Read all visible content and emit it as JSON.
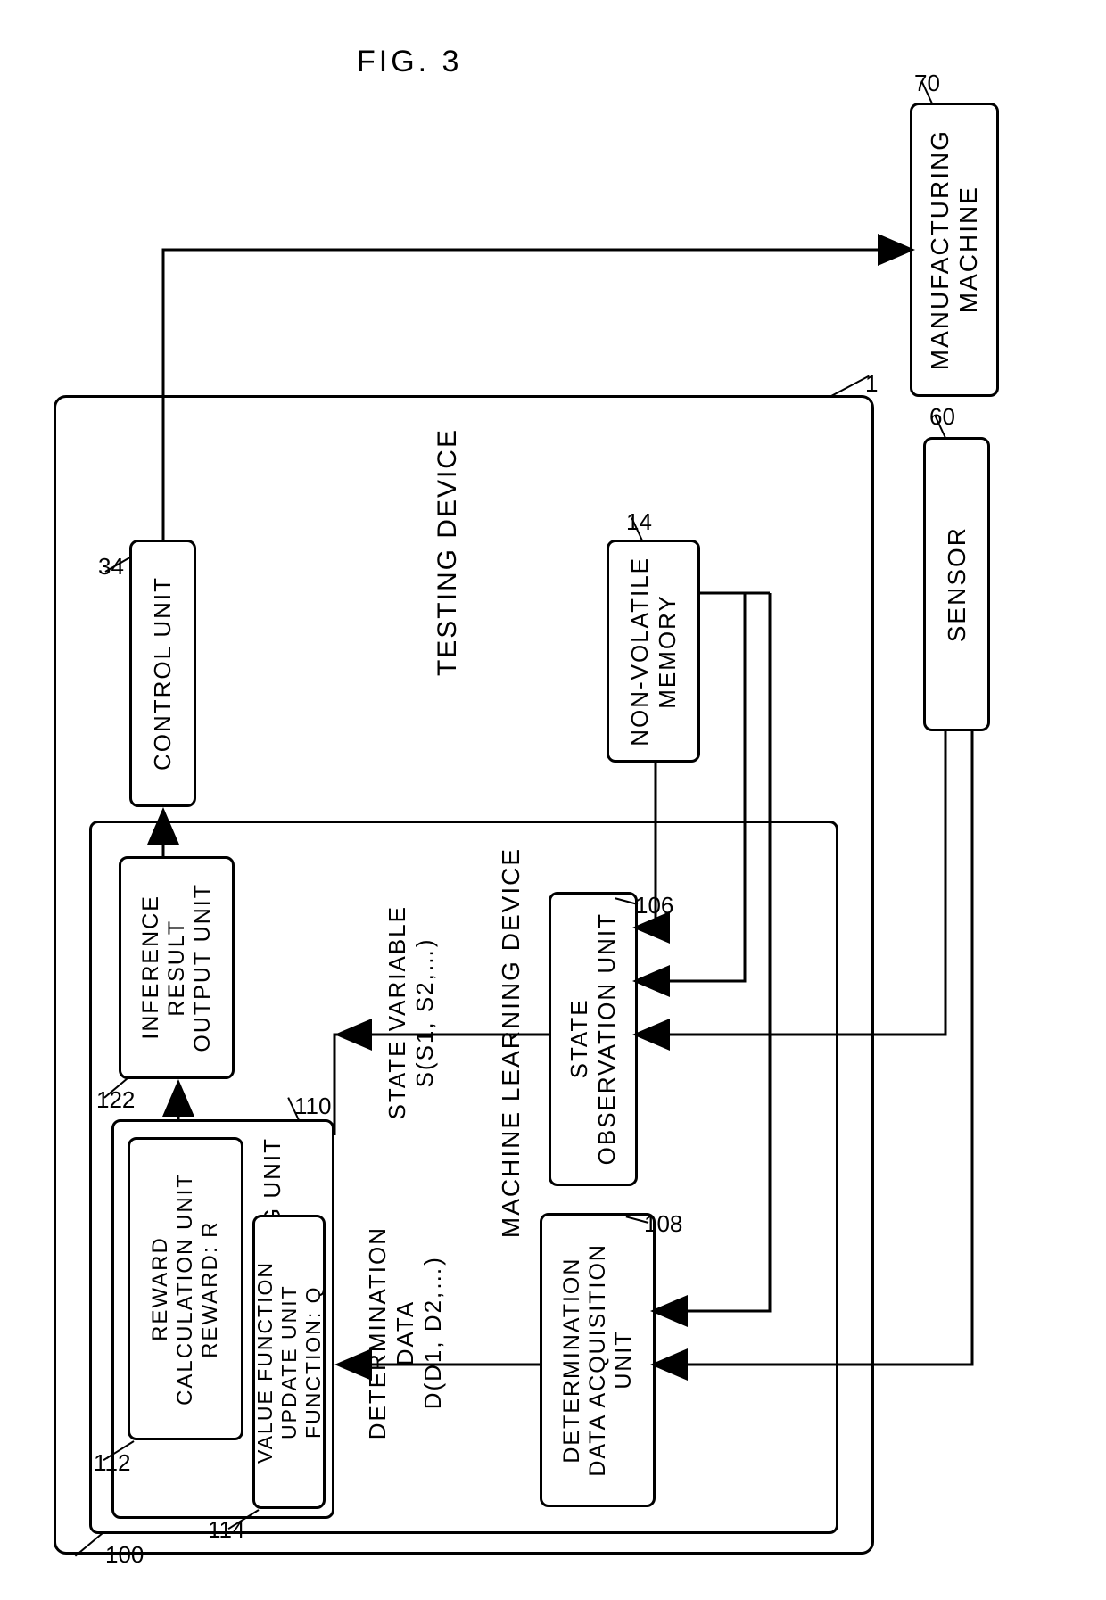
{
  "figure_title": "FIG. 3",
  "stroke_color": "#000000",
  "stroke_width": 3,
  "corner_radius": 10,
  "font_family": "Arial",
  "title_fontsize": 34,
  "box_fontsize": 28,
  "label_fontsize": 26,
  "outer": {
    "title": "TESTING DEVICE",
    "number": "1"
  },
  "ml_device": {
    "title": "MACHINE LEARNING DEVICE",
    "number": "100"
  },
  "boxes": {
    "manufacturing": {
      "label": "MANUFACTURING\nMACHINE",
      "number": "70"
    },
    "sensor": {
      "label": "SENSOR",
      "number": "60"
    },
    "nvmem": {
      "label": "NON-VOLATILE\nMEMORY",
      "number": "14"
    },
    "control": {
      "label": "CONTROL UNIT",
      "number": "34"
    },
    "inference": {
      "label": "INFERENCE\nRESULT\nOUTPUT UNIT",
      "number": "122"
    },
    "state_obs": {
      "label": "STATE\nOBSERVATION UNIT",
      "number": "106"
    },
    "det_data": {
      "label": "DETERMINATION\nDATA ACQUISITION\nUNIT",
      "number": "108"
    },
    "learning": {
      "title": "LEARNING UNIT",
      "number": "110"
    },
    "reward": {
      "label": "REWARD\nCALCULATION UNIT\nREWARD: R",
      "number": "112"
    },
    "value_fn": {
      "label": "VALUE FUNCTION\nUPDATE UNIT\nFUNCTION: Q",
      "number": "114"
    }
  },
  "edge_labels": {
    "state_var": "STATE VARIABLE\nS(S1, S2,…)",
    "det_data": "DETERMINATION\nDATA\nD(D1, D2,…)"
  }
}
